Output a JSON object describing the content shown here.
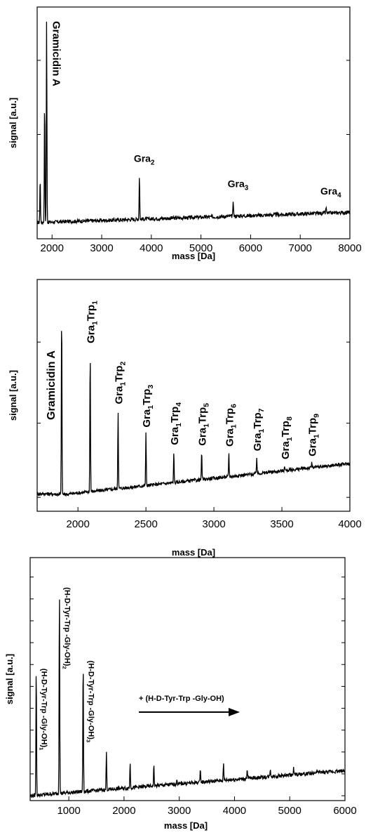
{
  "chart_data": [
    {
      "type": "line",
      "xlabel": "mass [Da]",
      "ylabel": "signal [a.u.]",
      "xlim": [
        1700,
        8000
      ],
      "xticks": [
        2000,
        3000,
        4000,
        5000,
        6000,
        7000,
        8000
      ],
      "tick_labels": [
        "2000",
        "3000",
        "4000",
        "5000",
        "6000",
        "7000",
        "8000"
      ],
      "peaks": [
        {
          "x": 1760,
          "y": 0.22
        },
        {
          "x": 1850,
          "y": 0.6
        },
        {
          "x": 1890,
          "y": 1.0
        },
        {
          "x": 3760,
          "y": 0.22
        },
        {
          "x": 5650,
          "y": 0.08
        },
        {
          "x": 7520,
          "y": 0.03
        }
      ],
      "annotations": [
        {
          "main": "Gramicidin A",
          "x": 1890
        },
        {
          "main": "Gra",
          "sub": "2",
          "x": 3760
        },
        {
          "main": "Gra",
          "sub": "3",
          "x": 5650
        },
        {
          "main": "Gra",
          "sub": "4",
          "x": 7520
        }
      ]
    },
    {
      "type": "line",
      "xlabel": "mass [Da]",
      "ylabel": "signal [a.u.]",
      "xlim": [
        1700,
        4000
      ],
      "xticks": [
        2000,
        2500,
        3000,
        3500,
        4000
      ],
      "tick_labels": [
        "2000",
        "2500",
        "3000",
        "3500",
        "4000"
      ],
      "peaks": [
        {
          "x": 1880,
          "y": 1.0
        },
        {
          "x": 2090,
          "y": 0.76
        },
        {
          "x": 2295,
          "y": 0.42
        },
        {
          "x": 2500,
          "y": 0.28
        },
        {
          "x": 2705,
          "y": 0.17
        },
        {
          "x": 2910,
          "y": 0.15
        },
        {
          "x": 3110,
          "y": 0.13
        },
        {
          "x": 3315,
          "y": 0.09
        },
        {
          "x": 3520,
          "y": 0.03
        },
        {
          "x": 3720,
          "y": 0.03
        }
      ],
      "annotations": [
        {
          "main": "Gramicidin A",
          "x": 1880
        },
        {
          "main": "Gra",
          "sub": "1",
          "main2": "Trp",
          "sub2": "1",
          "x": 2090
        },
        {
          "main": "Gra",
          "sub": "1",
          "main2": "Trp",
          "sub2": "2",
          "x": 2295
        },
        {
          "main": "Gra",
          "sub": "1",
          "main2": "Trp",
          "sub2": "3",
          "x": 2500
        },
        {
          "main": "Gra",
          "sub": "1",
          "main2": "Trp",
          "sub2": "4",
          "x": 2705
        },
        {
          "main": "Gra",
          "sub": "1",
          "main2": "Trp",
          "sub2": "5",
          "x": 2910
        },
        {
          "main": "Gra",
          "sub": "1",
          "main2": "Trp",
          "sub2": "6",
          "x": 3110
        },
        {
          "main": "Gra",
          "sub": "1",
          "main2": "Trp",
          "sub2": "7",
          "x": 3315
        },
        {
          "main": "Gra",
          "sub": "1",
          "main2": "Trp",
          "sub2": "8",
          "x": 3520
        },
        {
          "main": "Gra",
          "sub": "1",
          "main2": "Trp",
          "sub2": "9",
          "x": 3720
        }
      ]
    },
    {
      "type": "line",
      "xlabel": "mass [Da]",
      "ylabel": "signal [a.u.]",
      "xlim": [
        300,
        6000
      ],
      "xticks": [
        1000,
        2000,
        3000,
        4000,
        5000,
        6000
      ],
      "tick_labels": [
        "1000",
        "2000",
        "3000",
        "4000",
        "5000",
        "6000"
      ],
      "peaks": [
        {
          "x": 410,
          "y": 0.62
        },
        {
          "x": 830,
          "y": 1.0
        },
        {
          "x": 1260,
          "y": 0.64
        },
        {
          "x": 1680,
          "y": 0.18
        },
        {
          "x": 2110,
          "y": 0.12
        },
        {
          "x": 2540,
          "y": 0.1
        },
        {
          "x": 2960,
          "y": 0.02
        },
        {
          "x": 3380,
          "y": 0.07
        },
        {
          "x": 3800,
          "y": 0.08
        },
        {
          "x": 4230,
          "y": 0.04
        },
        {
          "x": 4650,
          "y": 0.04
        },
        {
          "x": 5070,
          "y": 0.03
        },
        {
          "x": 5500,
          "y": 0.02
        }
      ],
      "annotations": [
        {
          "main": "(H-D-Tyr-Trp -Gly-OH)",
          "sub": "1",
          "x": 410
        },
        {
          "main": "(H-D-Tyr-Trp -Gly-OH)",
          "sub": "2",
          "x": 830
        },
        {
          "main": "(H-D-Tyr-Trp -Gly-OH)",
          "sub": "3",
          "x": 1260
        }
      ],
      "arrow_label": "+ (H-D-Tyr-Trp -Gly-OH)"
    }
  ]
}
